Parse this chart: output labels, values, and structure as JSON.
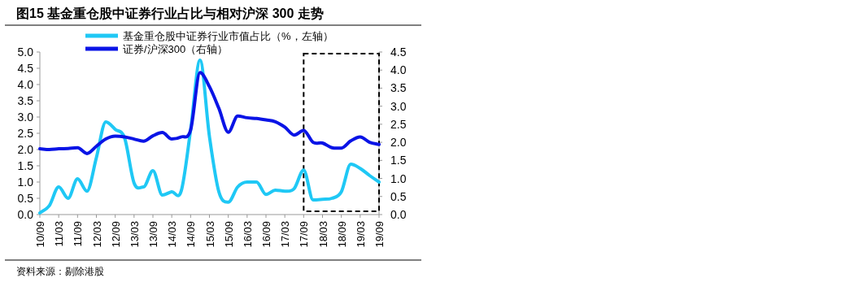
{
  "chart_data": {
    "type": "line",
    "title": "图15 基金重仓股中证券行业占比与相对沪深 300 走势",
    "annotations": [
      "资料来源：剔除港股"
    ],
    "categories": [
      "10/09",
      null,
      "11/03",
      null,
      "11/09",
      null,
      "12/03",
      null,
      "12/09",
      null,
      "13/03",
      null,
      "13/09",
      null,
      "14/03",
      null,
      "14/09",
      null,
      "15/03",
      null,
      "15/09",
      null,
      "16/03",
      null,
      "16/09",
      null,
      "17/03",
      null,
      "17/09",
      null,
      "18/03",
      null,
      "18/09",
      null,
      "19/03",
      null,
      "19/09"
    ],
    "series": [
      {
        "name": "基金重仓股中证券行业市值占比（%，左轴）",
        "color": "#1fc8f5",
        "values": [
          0.05,
          0.27,
          0.85,
          0.5,
          1.1,
          0.72,
          1.75,
          2.85,
          2.62,
          2.35,
          0.97,
          0.85,
          1.35,
          0.6,
          0.7,
          0.72,
          2.6,
          4.75,
          2.4,
          0.7,
          0.38,
          0.85,
          1.0,
          1.0,
          0.62,
          0.75,
          0.72,
          0.8,
          1.37,
          0.45,
          0.47,
          0.5,
          0.7,
          1.55,
          1.42,
          1.2,
          1.0
        ]
      },
      {
        "name": "证券/沪深300（右轴）",
        "color": "#0a14e6",
        "axis": "y2",
        "values": [
          1.82,
          1.8,
          1.82,
          1.83,
          1.85,
          1.69,
          1.89,
          2.09,
          2.17,
          2.15,
          2.09,
          2.03,
          2.18,
          2.27,
          2.09,
          2.15,
          2.34,
          3.93,
          3.54,
          2.94,
          2.28,
          2.73,
          2.68,
          2.66,
          2.62,
          2.57,
          2.42,
          2.2,
          2.33,
          2.0,
          1.98,
          1.85,
          1.84,
          2.04,
          2.15,
          2.0,
          1.94
        ]
      }
    ],
    "ylim": [
      0,
      5
    ],
    "yticks": [
      {
        "value": 0,
        "label": "0.0"
      },
      {
        "value": 0.5,
        "label": "0.5"
      },
      {
        "value": 1,
        "label": "1.0"
      },
      {
        "value": 1.5,
        "label": "1.5"
      },
      {
        "value": 2,
        "label": "2.0"
      },
      {
        "value": 2.5,
        "label": "2.5"
      },
      {
        "value": 3,
        "label": "3.0"
      },
      {
        "value": 3.5,
        "label": "3.5"
      },
      {
        "value": 4,
        "label": "4.0"
      },
      {
        "value": 4.5,
        "label": "4.5"
      },
      {
        "value": 5,
        "label": "5.0"
      }
    ],
    "y2lim": [
      0,
      4.5
    ],
    "y2ticks": [
      {
        "value": 0,
        "label": "0.0"
      },
      {
        "value": 0.5,
        "label": "0.5"
      },
      {
        "value": 1,
        "label": "1.0"
      },
      {
        "value": 1.5,
        "label": "1.5"
      },
      {
        "value": 2,
        "label": "2.0"
      },
      {
        "value": 2.5,
        "label": "2.5"
      },
      {
        "value": 3,
        "label": "3.0"
      },
      {
        "value": 3.5,
        "label": "3.5"
      },
      {
        "value": 4,
        "label": "4.0"
      },
      {
        "value": 4.5,
        "label": "4.5"
      }
    ],
    "legend": "top"
  }
}
